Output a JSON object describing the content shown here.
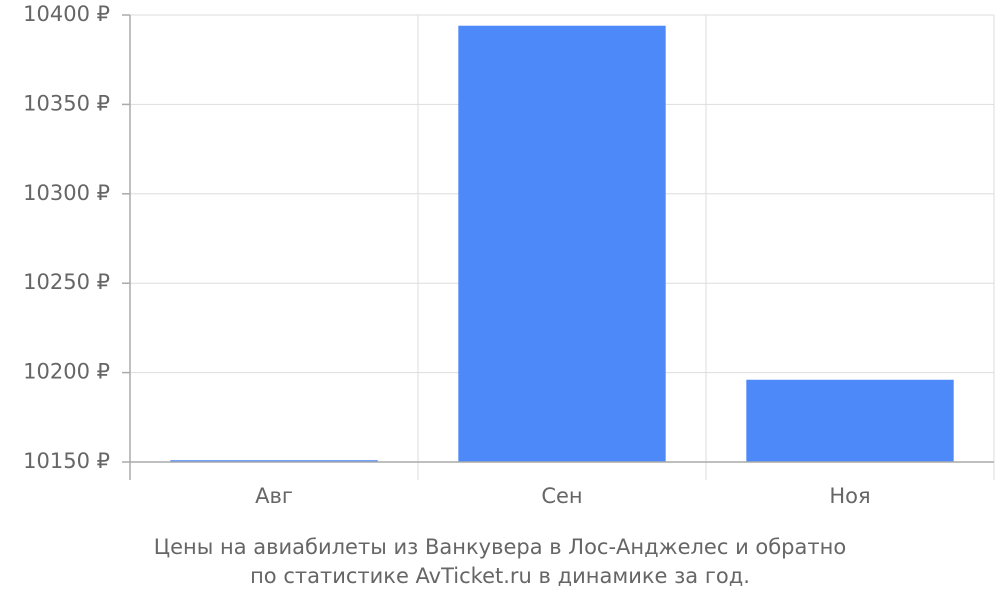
{
  "chart_data": {
    "type": "bar",
    "title": [
      "Цены на авиабилеты из Ванкувера в Лос-Анджелес и обратно",
      "по статистике AvTicket.ru в динамике за год."
    ],
    "categories": [
      "Авг",
      "Сен",
      "Ноя"
    ],
    "values": [
      10151,
      10394,
      10196
    ],
    "color": "#4d89f9",
    "ylim": [
      10150,
      10400
    ],
    "yticks": [
      {
        "value": 10150,
        "label": "10150 ₽"
      },
      {
        "value": 10200,
        "label": "10200 ₽"
      },
      {
        "value": 10250,
        "label": "10250 ₽"
      },
      {
        "value": 10300,
        "label": "10300 ₽"
      },
      {
        "value": 10350,
        "label": "10350 ₽"
      },
      {
        "value": 10400,
        "label": "10400 ₽"
      }
    ],
    "grid": true
  }
}
